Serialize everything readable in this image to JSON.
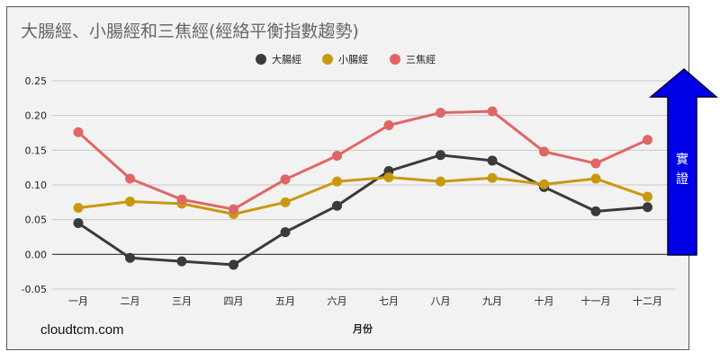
{
  "title": "大腸經、小腸經和三焦經(經絡平衡指數趨勢)",
  "brand": "cloudtcm.com",
  "arrow": {
    "label": "實證",
    "color": "#0000e6"
  },
  "chart_data": {
    "type": "line",
    "categories": [
      "一月",
      "二月",
      "三月",
      "四月",
      "五月",
      "六月",
      "七月",
      "八月",
      "九月",
      "十月",
      "十一月",
      "十二月"
    ],
    "series": [
      {
        "name": "大腸經",
        "color": "#3a3a3a",
        "values": [
          0.045,
          -0.005,
          -0.01,
          -0.015,
          0.032,
          0.07,
          0.12,
          0.143,
          0.135,
          0.097,
          0.062,
          0.068
        ]
      },
      {
        "name": "小腸經",
        "color": "#c8990f",
        "values": [
          0.067,
          0.076,
          0.073,
          0.058,
          0.075,
          0.105,
          0.111,
          0.105,
          0.11,
          0.101,
          0.109,
          0.083
        ]
      },
      {
        "name": "三焦經",
        "color": "#e06666",
        "values": [
          0.176,
          0.109,
          0.079,
          0.065,
          0.108,
          0.142,
          0.186,
          0.204,
          0.206,
          0.148,
          0.131,
          0.165
        ]
      }
    ],
    "yticks": [
      "0.25",
      "0.20",
      "0.15",
      "0.10",
      "0.05",
      "0.00",
      "-0.05"
    ],
    "ylim": [
      -0.05,
      0.25
    ],
    "xlabel": "月份",
    "ylabel": "",
    "grid": true,
    "legend": "top-center"
  }
}
